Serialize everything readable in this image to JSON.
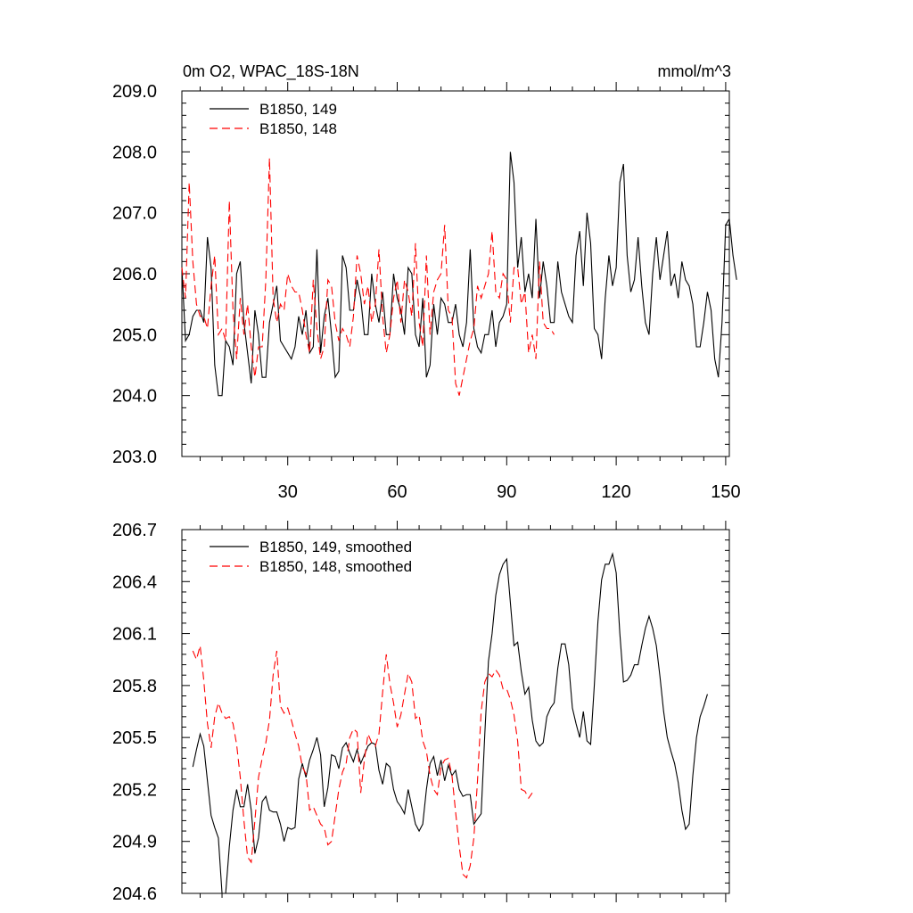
{
  "chart_data": [
    {
      "type": "line",
      "title_left": "0m O2, WPAC_18S-18N",
      "title_right": "mmol/m^3",
      "xlabel": "",
      "ylabel": "",
      "xlim": [
        1,
        151
      ],
      "ylim": [
        203.0,
        209.0
      ],
      "xticks": [
        30,
        60,
        90,
        120,
        150
      ],
      "xtick_labels": [
        "30",
        "60",
        "90",
        "120",
        "150"
      ],
      "yticks": [
        203.0,
        204.0,
        205.0,
        206.0,
        207.0,
        208.0,
        209.0
      ],
      "ytick_labels": [
        "203.0",
        "204.0",
        "205.0",
        "206.0",
        "207.0",
        "208.0",
        "209.0"
      ],
      "legend_position": "top-left",
      "series": [
        {
          "name": "B1850, 149",
          "color": "#000000",
          "dash": "solid",
          "x_start": 1,
          "values": [
            206.1,
            204.9,
            205.0,
            205.3,
            205.4,
            205.4,
            205.2,
            206.6,
            206.1,
            204.5,
            204.0,
            204.0,
            204.9,
            204.8,
            204.5,
            206.0,
            206.2,
            205.2,
            204.7,
            204.2,
            205.4,
            205.0,
            204.3,
            204.3,
            205.2,
            205.5,
            205.8,
            204.9,
            204.8,
            204.7,
            204.6,
            204.8,
            205.3,
            205.0,
            205.4,
            204.7,
            204.8,
            206.4,
            204.7,
            205.3,
            205.6,
            205.0,
            204.3,
            204.4,
            206.3,
            206.1,
            205.4,
            205.4,
            205.9,
            205.6,
            205.0,
            205.0,
            206.0,
            205.5,
            205.2,
            205.7,
            205.0,
            205.0,
            206.0,
            205.6,
            205.4,
            205.0,
            206.1,
            206.0,
            205.0,
            204.8,
            205.6,
            204.3,
            204.5,
            205.5,
            205.0,
            205.6,
            205.5,
            205.2,
            205.2,
            205.5,
            205.0,
            204.8,
            205.2,
            206.4,
            205.1,
            204.8,
            204.7,
            205.0,
            205.0,
            205.4,
            204.8,
            205.2,
            205.3,
            205.5,
            208.0,
            207.5,
            206.1,
            206.6,
            205.7,
            206.0,
            205.6,
            206.9,
            205.6,
            206.2,
            205.8,
            205.2,
            205.2,
            206.2,
            205.7,
            205.5,
            205.3,
            205.2,
            206.3,
            206.7,
            205.8,
            207.0,
            206.5,
            205.1,
            205.0,
            204.6,
            205.6,
            206.3,
            205.8,
            206.1,
            207.5,
            207.8,
            206.3,
            205.7,
            205.9,
            206.6,
            205.8,
            205.2,
            205.0,
            206.0,
            206.6,
            205.9,
            206.3,
            206.7,
            205.8,
            206.0,
            205.6,
            206.2,
            205.9,
            205.8,
            205.5,
            204.8,
            204.8,
            205.2,
            205.7,
            205.4,
            204.6,
            204.3,
            205.2,
            206.8,
            206.9,
            206.3,
            205.9
          ]
        },
        {
          "name": "B1850, 148",
          "color": "#ff0000",
          "dash": "dashed",
          "x_start": 1,
          "values": [
            206.1,
            205.6,
            207.5,
            206.2,
            205.5,
            205.3,
            205.3,
            205.1,
            205.8,
            206.3,
            205.0,
            205.1,
            204.9,
            207.2,
            205.4,
            204.6,
            205.6,
            205.0,
            205.5,
            204.8,
            204.3,
            204.8,
            204.8,
            205.9,
            207.9,
            205.6,
            205.2,
            205.5,
            205.4,
            206.0,
            205.8,
            205.7,
            205.7,
            205.4,
            205.0,
            204.7,
            205.9,
            205.1,
            204.6,
            204.8,
            205.9,
            205.8,
            205.2,
            204.9,
            205.1,
            205.0,
            204.8,
            205.3,
            206.3,
            206.0,
            205.5,
            205.8,
            205.2,
            205.5,
            206.4,
            205.3,
            204.7,
            205.0,
            205.6,
            205.9,
            205.2,
            205.9,
            205.7,
            205.3,
            206.5,
            205.2,
            204.8,
            206.3,
            205.0,
            205.7,
            205.9,
            206.0,
            206.8,
            205.4,
            205.3,
            204.2,
            204.0,
            204.3,
            204.6,
            204.9,
            205.1,
            205.8,
            205.6,
            205.8,
            206.0,
            206.7,
            205.7,
            205.6,
            206.0,
            205.9,
            205.2,
            206.1,
            206.1,
            205.5,
            205.7,
            204.7,
            205.0,
            204.6,
            206.2,
            205.2,
            205.1,
            205.1,
            205.0
          ]
        }
      ]
    },
    {
      "type": "line",
      "title_left": "",
      "title_right": "",
      "xlabel": "",
      "ylabel": "",
      "xlim": [
        1,
        151
      ],
      "ylim": [
        204.6,
        206.7
      ],
      "xticks": [
        30,
        60,
        90,
        120,
        150
      ],
      "xtick_labels": [],
      "yticks": [
        204.6,
        204.9,
        205.2,
        205.5,
        205.8,
        206.1,
        206.4,
        206.7
      ],
      "ytick_labels": [
        "204.6",
        "204.9",
        "205.2",
        "205.5",
        "205.8",
        "206.1",
        "206.4",
        "206.7"
      ],
      "legend_position": "top-left",
      "series": [
        {
          "name": "B1850, 149, smoothed",
          "color": "#000000",
          "dash": "solid",
          "x_start": 4,
          "values": [
            205.33,
            205.43,
            205.52,
            205.45,
            205.25,
            205.05,
            204.98,
            204.92,
            204.6,
            204.6,
            204.87,
            205.08,
            205.2,
            205.1,
            205.1,
            205.23,
            205.08,
            204.83,
            204.92,
            205.13,
            205.16,
            205.08,
            205.07,
            205.07,
            205.0,
            204.9,
            204.98,
            204.97,
            204.98,
            205.26,
            205.35,
            205.27,
            205.37,
            205.43,
            205.5,
            205.4,
            205.1,
            205.21,
            205.4,
            205.39,
            205.32,
            205.44,
            205.47,
            205.41,
            205.36,
            205.43,
            205.35,
            205.4,
            205.45,
            205.47,
            205.46,
            205.31,
            205.23,
            205.35,
            205.33,
            205.2,
            205.13,
            205.1,
            205.06,
            205.2,
            205.1,
            205.0,
            204.96,
            205.0,
            205.2,
            205.35,
            205.39,
            205.28,
            205.37,
            205.25,
            205.34,
            205.28,
            205.31,
            205.2,
            205.16,
            205.17,
            205.17,
            205.0,
            205.03,
            205.06,
            205.52,
            205.94,
            206.1,
            206.32,
            206.44,
            206.5,
            206.53,
            206.28,
            206.03,
            206.05,
            205.88,
            205.75,
            205.79,
            205.6,
            205.48,
            205.45,
            205.47,
            205.62,
            205.67,
            205.7,
            205.9,
            206.04,
            206.04,
            205.92,
            205.67,
            205.58,
            205.5,
            205.65,
            205.48,
            205.46,
            205.8,
            206.17,
            206.41,
            206.5,
            206.5,
            206.56,
            206.45,
            206.1,
            205.82,
            205.83,
            205.86,
            205.92,
            205.92,
            206.03,
            206.13,
            206.2,
            206.13,
            206.03,
            205.85,
            205.65,
            205.5,
            205.42,
            205.35,
            205.24,
            205.08,
            204.97,
            205.0,
            205.28,
            205.5,
            205.62,
            205.68,
            205.75
          ]
        },
        {
          "name": "B1850, 148, smoothed",
          "color": "#ff0000",
          "dash": "dashed",
          "x_start": 4,
          "values": [
            206.0,
            205.95,
            206.03,
            205.83,
            205.58,
            205.44,
            205.62,
            205.7,
            205.64,
            205.61,
            205.62,
            205.58,
            205.46,
            205.27,
            205.02,
            204.81,
            204.78,
            205.02,
            205.27,
            205.38,
            205.47,
            205.6,
            205.86,
            206.0,
            205.68,
            205.64,
            205.67,
            205.6,
            205.52,
            205.45,
            205.33,
            205.29,
            205.08,
            205.1,
            205.05,
            205.0,
            204.98,
            204.88,
            204.9,
            205.05,
            205.2,
            205.3,
            205.35,
            205.5,
            205.55,
            205.53,
            205.18,
            205.37,
            205.52,
            205.47,
            205.45,
            205.52,
            205.76,
            205.98,
            205.81,
            205.7,
            205.56,
            205.63,
            205.75,
            205.87,
            205.82,
            205.61,
            205.63,
            205.48,
            205.42,
            205.28,
            205.2,
            205.17,
            205.33,
            205.37,
            205.38,
            205.28,
            205.07,
            204.87,
            204.71,
            204.69,
            204.76,
            204.92,
            205.25,
            205.65,
            205.82,
            205.87,
            205.85,
            205.89,
            205.86,
            205.78,
            205.78,
            205.72,
            205.63,
            205.48,
            205.2,
            205.19,
            205.15,
            205.18
          ]
        }
      ]
    }
  ]
}
